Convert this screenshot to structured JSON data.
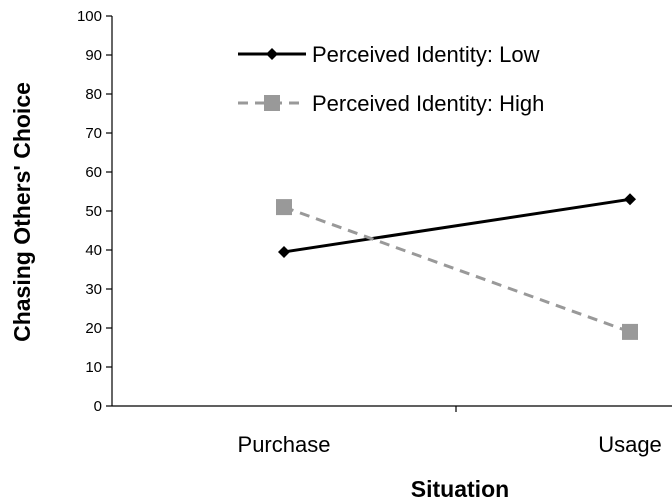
{
  "chart_data": {
    "type": "line",
    "categories": [
      "Purchase",
      "Usage"
    ],
    "series": [
      {
        "name": "Perceived Identity: Low",
        "values": [
          39.5,
          53
        ],
        "color": "#000000",
        "style": "solid",
        "marker": "diamond"
      },
      {
        "name": "Perceived Identity: High",
        "values": [
          51,
          19
        ],
        "color": "#999999",
        "style": "dashed",
        "marker": "square"
      }
    ],
    "xlabel": "Situation",
    "ylabel": "Chasing Others' Choice",
    "ylim": [
      0,
      100
    ],
    "yticks": [
      "0",
      "10",
      "20",
      "30",
      "40",
      "50",
      "60",
      "70",
      "80",
      "90",
      "100"
    ],
    "grid": false,
    "legend_position": "top-right"
  }
}
